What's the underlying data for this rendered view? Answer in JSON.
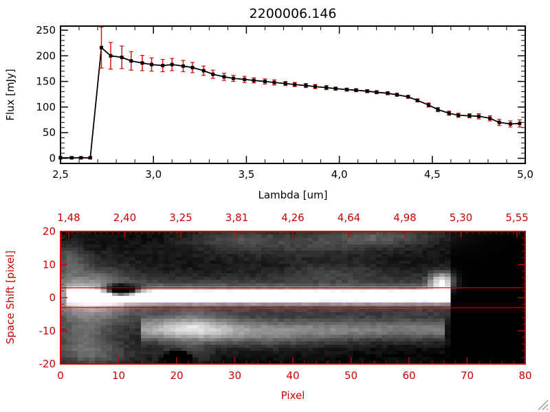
{
  "window": {
    "background": "#ffffff"
  },
  "colors": {
    "axis_red": "#cc0000",
    "error_red": "#dd0000",
    "plot_black": "#000000"
  },
  "chart_data": [
    {
      "type": "line",
      "title": "2200006.146",
      "xlabel": "Lambda [um]",
      "ylabel": "Flux [mJy]",
      "xlim": [
        2.5,
        5.0
      ],
      "ylim": [
        -10,
        258
      ],
      "xticks": [
        2.5,
        3.0,
        3.5,
        4.0,
        4.5,
        5.0
      ],
      "xtick_labels": [
        "2,5",
        "3,0",
        "3,5",
        "4,0",
        "4,5",
        "5,0"
      ],
      "yticks": [
        0,
        50,
        100,
        150,
        200,
        250
      ],
      "ytick_labels": [
        "0",
        "50",
        "100",
        "150",
        "200",
        "250"
      ],
      "grid": false,
      "marker": "square",
      "series": [
        {
          "name": "spectrum",
          "x": [
            2.5,
            2.56,
            2.61,
            2.66,
            2.72,
            2.77,
            2.83,
            2.88,
            2.94,
            2.99,
            3.05,
            3.1,
            3.16,
            3.21,
            3.27,
            3.32,
            3.38,
            3.43,
            3.49,
            3.54,
            3.6,
            3.65,
            3.71,
            3.76,
            3.82,
            3.87,
            3.93,
            3.98,
            4.04,
            4.09,
            4.15,
            4.2,
            4.26,
            4.31,
            4.37,
            4.42,
            4.48,
            4.53,
            4.59,
            4.64,
            4.7,
            4.75,
            4.81,
            4.86,
            4.92,
            4.97
          ],
          "y": [
            1,
            1,
            1,
            1,
            216,
            200,
            197,
            190,
            186,
            183,
            181,
            183,
            180,
            177,
            171,
            164,
            159,
            156,
            154,
            152,
            150,
            148,
            146,
            144,
            142,
            140,
            138,
            136,
            134,
            133,
            131,
            129,
            127,
            124,
            120,
            113,
            104,
            95,
            88,
            84,
            83,
            82,
            78,
            70,
            67,
            68
          ],
          "yerr": [
            2,
            2,
            2,
            2,
            40,
            26,
            22,
            18,
            15,
            13,
            12,
            12,
            11,
            10,
            9,
            8,
            7,
            6,
            6,
            5,
            5,
            5,
            4,
            4,
            4,
            4,
            4,
            3,
            3,
            3,
            3,
            3,
            3,
            3,
            3,
            3,
            4,
            4,
            4,
            4,
            4,
            5,
            5,
            6,
            6,
            7
          ]
        }
      ]
    },
    {
      "type": "heatmap",
      "xlabel": "Pixel",
      "ylabel": "Space Shift [pixel]",
      "xlim": [
        0,
        80
      ],
      "ylim": [
        -20,
        20
      ],
      "xticks": [
        0,
        10,
        20,
        30,
        40,
        50,
        60,
        70,
        80
      ],
      "xtick_labels": [
        "0",
        "10",
        "20",
        "30",
        "40",
        "50",
        "60",
        "70",
        "80"
      ],
      "yticks": [
        20,
        10,
        0,
        -10,
        -20
      ],
      "ytick_labels": [
        "20",
        "10",
        "0",
        "-10",
        "-20"
      ],
      "top_axis_labels": [
        "1,48",
        "2,40",
        "3,25",
        "3,81",
        "4,26",
        "4,64",
        "4,98",
        "5,30",
        "5,55"
      ],
      "aperture_lines": [
        3,
        -3
      ],
      "features": [
        {
          "type": "band",
          "x0": 0,
          "x1": 67,
          "center": 0,
          "sigma": 13,
          "peak": 0.1
        },
        {
          "type": "band",
          "x0": 1,
          "x1": 67,
          "center": 0.5,
          "sigma": 1.5,
          "peak": 1.05
        },
        {
          "type": "band",
          "x0": 0,
          "x1": 67,
          "center": 0.5,
          "sigma": 4.0,
          "peak": 0.28
        },
        {
          "type": "band",
          "x0": 14,
          "x1": 66,
          "center": -10,
          "sigma": 2.4,
          "peak": 0.42
        },
        {
          "type": "blob",
          "x": 5,
          "y": 0,
          "sx": 5,
          "sy": 7,
          "peak": 0.42
        },
        {
          "type": "blob",
          "x": 3,
          "y": -14,
          "sx": 4,
          "sy": 5,
          "peak": 0.28
        },
        {
          "type": "blob",
          "x": 7,
          "y": -18,
          "sx": 5,
          "sy": 3,
          "peak": 0.2
        },
        {
          "type": "blob",
          "x": 1,
          "y": 12,
          "sx": 2,
          "sy": 4,
          "peak": 0.25
        },
        {
          "type": "blob",
          "x": 22,
          "y": -9,
          "sx": 5,
          "sy": 3,
          "peak": 0.38
        },
        {
          "type": "blob",
          "x": 34,
          "y": -13,
          "sx": 10,
          "sy": 3,
          "peak": 0.16
        },
        {
          "type": "blob",
          "x": 21,
          "y": -18,
          "sx": 3,
          "sy": 2.5,
          "peak": 0.3
        },
        {
          "type": "blob",
          "x": 40,
          "y": 16,
          "sx": 14,
          "sy": 3,
          "peak": 0.2
        },
        {
          "type": "blob",
          "x": 55,
          "y": 19,
          "sx": 8,
          "sy": 2,
          "peak": 0.28
        },
        {
          "type": "blob",
          "x": 30,
          "y": 19,
          "sx": 6,
          "sy": 2,
          "peak": 0.18
        },
        {
          "type": "blob",
          "x": 47,
          "y": 8,
          "sx": 6,
          "sy": 2,
          "peak": 0.14
        },
        {
          "type": "blob",
          "x": 66,
          "y": 5,
          "sx": 1.5,
          "sy": 2,
          "peak": 0.75
        },
        {
          "type": "hole",
          "x": 10,
          "y": 2,
          "sx": 2.2,
          "sy": 1.3,
          "peak": 1.5
        },
        {
          "type": "hole",
          "x": 20,
          "y": -19,
          "sx": 1.4,
          "sy": 1.4,
          "peak": 1.3
        }
      ]
    }
  ]
}
